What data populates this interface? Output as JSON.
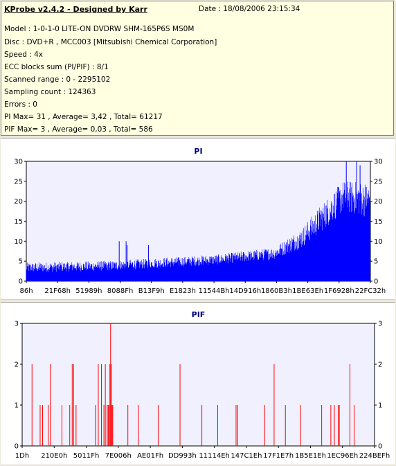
{
  "info": {
    "title": "KProbe v2.4.2 - Designed by Karr",
    "date": "Date : 18/08/2006 23:15:34",
    "lines": [
      "Model : 1-0-1-0 LITE-ON DVDRW SHM-165P6S MS0M",
      "Disc : DVD+R , MCC003 [Mitsubishi Chemical Corporation]",
      "Speed : 4x",
      "ECC blocks sum (PI/PIF) : 8/1",
      "Scanned range : 0 - 2295102",
      "Sampling count : 124363",
      "Errors : 0",
      "PI Max= 31 , Average= 3,42 , Total= 61217",
      "PIF Max= 3 , Average= 0,03 , Total= 586"
    ]
  },
  "colors": {
    "pi": "#0000ff",
    "pif": "#ff0000",
    "plot_bg": "#f0f0ff"
  },
  "chart_data": [
    {
      "type": "bar",
      "title": "PI",
      "ylim": [
        0,
        30
      ],
      "yticks": [
        0,
        5,
        10,
        15,
        20,
        25,
        30
      ],
      "xtick_labels": [
        "86h",
        "21F68h",
        "51989h",
        "8088Fh",
        "B13F9h",
        "E1823h",
        "11544Bh",
        "14D916h",
        "1860B3h",
        "1BE63Eh",
        "1F6928h",
        "22FC32h"
      ],
      "x_range": [
        0,
        2295102
      ],
      "profile": [
        {
          "x": 0.0,
          "base": 3.0,
          "spread": 2.5
        },
        {
          "x": 0.25,
          "base": 3.5,
          "spread": 2.5
        },
        {
          "x": 0.55,
          "base": 5.0,
          "spread": 2.5
        },
        {
          "x": 0.72,
          "base": 6.5,
          "spread": 3.0
        },
        {
          "x": 0.8,
          "base": 10.0,
          "spread": 5.0
        },
        {
          "x": 0.86,
          "base": 15.0,
          "spread": 7.0
        },
        {
          "x": 0.92,
          "base": 20.0,
          "spread": 8.0
        },
        {
          "x": 1.0,
          "base": 19.0,
          "spread": 9.0
        }
      ],
      "spikes": [
        {
          "x": 0.27,
          "y": 10
        },
        {
          "x": 0.29,
          "y": 10
        },
        {
          "x": 0.293,
          "y": 9
        },
        {
          "x": 0.355,
          "y": 9
        },
        {
          "x": 0.93,
          "y": 31
        },
        {
          "x": 0.96,
          "y": 30
        },
        {
          "x": 0.97,
          "y": 29
        }
      ]
    },
    {
      "type": "bar",
      "title": "PIF",
      "ylim": [
        0,
        3
      ],
      "yticks": [
        0,
        1,
        2,
        3
      ],
      "xtick_labels": [
        "1Dh",
        "210E0h",
        "5011Fh",
        "7E006h",
        "AE01Fh",
        "DD993h",
        "11114Eh",
        "147C1Eh",
        "17F1E7h",
        "1B5E1Eh",
        "1EC96Eh",
        "224BEFh"
      ],
      "x_range": [
        0,
        2295102
      ],
      "points": [
        {
          "x": 0.028,
          "y": 2
        },
        {
          "x": 0.051,
          "y": 1
        },
        {
          "x": 0.058,
          "y": 1
        },
        {
          "x": 0.074,
          "y": 1
        },
        {
          "x": 0.08,
          "y": 2
        },
        {
          "x": 0.113,
          "y": 1
        },
        {
          "x": 0.135,
          "y": 1
        },
        {
          "x": 0.142,
          "y": 2
        },
        {
          "x": 0.146,
          "y": 2
        },
        {
          "x": 0.153,
          "y": 1
        },
        {
          "x": 0.208,
          "y": 1
        },
        {
          "x": 0.216,
          "y": 2
        },
        {
          "x": 0.225,
          "y": 2
        },
        {
          "x": 0.232,
          "y": 1
        },
        {
          "x": 0.236,
          "y": 2
        },
        {
          "x": 0.241,
          "y": 1
        },
        {
          "x": 0.244,
          "y": 1
        },
        {
          "x": 0.246,
          "y": 1
        },
        {
          "x": 0.249,
          "y": 2
        },
        {
          "x": 0.251,
          "y": 3
        },
        {
          "x": 0.253,
          "y": 2
        },
        {
          "x": 0.255,
          "y": 1
        },
        {
          "x": 0.257,
          "y": 1
        },
        {
          "x": 0.3,
          "y": 1
        },
        {
          "x": 0.33,
          "y": 1
        },
        {
          "x": 0.386,
          "y": 1
        },
        {
          "x": 0.448,
          "y": 2
        },
        {
          "x": 0.51,
          "y": 1
        },
        {
          "x": 0.555,
          "y": 1
        },
        {
          "x": 0.607,
          "y": 1
        },
        {
          "x": 0.612,
          "y": 1
        },
        {
          "x": 0.688,
          "y": 1
        },
        {
          "x": 0.715,
          "y": 2
        },
        {
          "x": 0.747,
          "y": 1
        },
        {
          "x": 0.79,
          "y": 1
        },
        {
          "x": 0.85,
          "y": 1
        },
        {
          "x": 0.876,
          "y": 1
        },
        {
          "x": 0.886,
          "y": 1
        },
        {
          "x": 0.897,
          "y": 1
        },
        {
          "x": 0.9,
          "y": 1
        },
        {
          "x": 0.93,
          "y": 2
        },
        {
          "x": 0.942,
          "y": 1
        }
      ]
    }
  ]
}
